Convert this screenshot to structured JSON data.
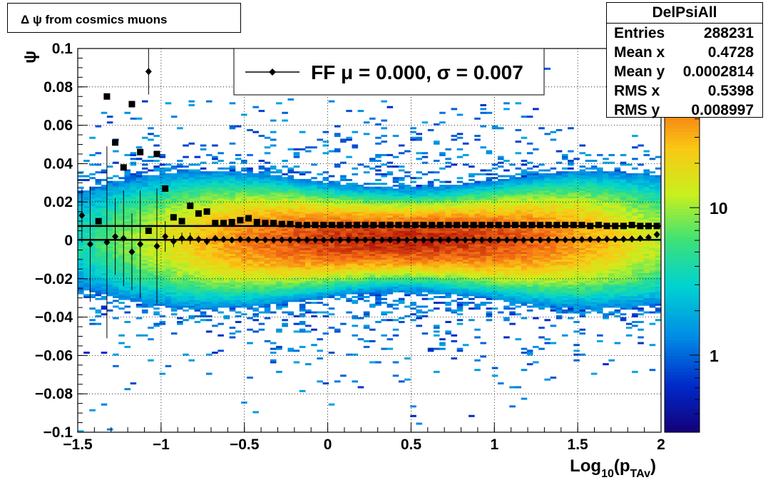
{
  "title": "Δ ψ from cosmics muons",
  "stats": {
    "name": "DelPsiAll",
    "rows": [
      {
        "label": "Entries",
        "value": "288231"
      },
      {
        "label": "Mean x",
        "value": "0.4728"
      },
      {
        "label": "Mean y",
        "value": "0.0002814"
      },
      {
        "label": "RMS x",
        "value": "0.5398"
      },
      {
        "label": "RMS y",
        "value": "0.008997"
      }
    ]
  },
  "legend": {
    "text": "FF μ =  0.000, σ =   0.007"
  },
  "colors": {
    "mean_markers": "#000000",
    "fit_line": "#000000",
    "frame": "#000000",
    "grid": "#000000"
  },
  "chart_data": {
    "type": "heatmap",
    "title": "Δ ψ from cosmics muons",
    "xlabel": "Log₁₀(p_TAv)",
    "ylabel": "ψ",
    "xlim": [
      -1.5,
      2
    ],
    "ylim": [
      -0.1,
      0.1
    ],
    "x_tick_labels": [
      "−1.5",
      "−1",
      "−0.5",
      "0",
      "0.5",
      "1",
      "1.5",
      "2"
    ],
    "y_tick_labels": [
      "−0.1",
      "−0.08",
      "−0.06",
      "−0.04",
      "−0.02",
      "0",
      "0.02",
      "0.04",
      "0.06",
      "0.08",
      "0.1"
    ],
    "colorbar": {
      "scale": "log",
      "tick_labels": [
        "1",
        "10"
      ],
      "range": [
        0.3,
        120
      ]
    },
    "grid": true,
    "legend_position": "top-center",
    "density_model": {
      "x_center": 0.45,
      "x_sigma": 0.75,
      "y_center": 0.0003,
      "y_sigma_min": 0.0085,
      "y_sigma_max": 0.016,
      "peak": 95
    },
    "series": [
      {
        "name": "FF",
        "marker": "diamond",
        "x": [
          -1.475,
          -1.425,
          -1.375,
          -1.325,
          -1.275,
          -1.225,
          -1.175,
          -1.125,
          -1.075,
          -1.025,
          -0.975,
          -0.925,
          -0.875,
          -0.825,
          -0.775,
          -0.725,
          -0.675,
          -0.625,
          -0.575,
          -0.525,
          -0.475,
          -0.425,
          -0.375,
          -0.325,
          -0.275,
          -0.225,
          -0.175,
          -0.125,
          -0.075,
          -0.025,
          0.025,
          0.075,
          0.125,
          0.175,
          0.225,
          0.275,
          0.325,
          0.375,
          0.425,
          0.475,
          0.525,
          0.575,
          0.625,
          0.675,
          0.725,
          0.775,
          0.825,
          0.875,
          0.925,
          0.975,
          1.025,
          1.075,
          1.125,
          1.175,
          1.225,
          1.275,
          1.325,
          1.375,
          1.425,
          1.475,
          1.525,
          1.575,
          1.625,
          1.675,
          1.725,
          1.775,
          1.825,
          1.875,
          1.925,
          1.975
        ],
        "y": [
          0.013,
          -0.002,
          null,
          -0.001,
          0.002,
          0.001,
          -0.006,
          -0.002,
          0.088,
          -0.003,
          0.002,
          -0.0005,
          0.001,
          0.001,
          0.0005,
          -0.0005,
          0.001,
          0.0005,
          0.0002,
          0.0005,
          0.0004,
          0.0003,
          0.0003,
          0.0002,
          0.0003,
          0.0002,
          0.0002,
          0.0002,
          0.0002,
          0.0002,
          0.0002,
          0.0002,
          0.0002,
          0.0002,
          0.0002,
          0.0002,
          0.0002,
          0.0002,
          0.0002,
          0.0002,
          0.0002,
          0.0002,
          0.0002,
          0.0002,
          0.0002,
          0.0002,
          0.0002,
          0.0002,
          0.0002,
          0.0002,
          0.0002,
          0.0002,
          0.0002,
          0.0002,
          0.0002,
          0.0002,
          0.0003,
          0.0003,
          0.0003,
          0.0003,
          0.0004,
          0.0005,
          0.0005,
          0.0006,
          0.0006,
          0.0006,
          0.0007,
          0.001,
          0.0015,
          0.003
        ],
        "yerr": [
          0.014,
          0.03,
          null,
          0.05,
          0.02,
          0.025,
          0.02,
          0.028,
          0.012,
          0.03,
          0.008,
          0.003,
          0.003,
          0.003,
          0.002,
          0.002,
          0.001,
          0.001,
          0.001,
          0.0005,
          0.0005,
          0.0005,
          0.0005,
          0.0005,
          0.0005,
          0.0005,
          0.0005,
          0.0005,
          0.0005,
          0.0005,
          0.0005,
          0.0005,
          0.0005,
          0.0005,
          0.0005,
          0.0005,
          0.0005,
          0.0005,
          0.0005,
          0.0005,
          0.0005,
          0.0005,
          0.0005,
          0.0005,
          0.0005,
          0.0005,
          0.0005,
          0.0005,
          0.0005,
          0.0005,
          0.0005,
          0.0005,
          0.0005,
          0.0005,
          0.0005,
          0.0005,
          0.0005,
          0.0005,
          0.0005,
          0.0005,
          0.0005,
          0.0005,
          0.0005,
          0.0005,
          0.0005,
          0.0005,
          0.0005,
          0.0005,
          0.0005,
          0.0005
        ]
      },
      {
        "marker": "square",
        "x": [
          -1.475,
          -1.425,
          -1.375,
          -1.325,
          -1.275,
          -1.225,
          -1.175,
          -1.125,
          -1.075,
          -1.025,
          -0.975,
          -0.925,
          -0.875,
          -0.825,
          -0.775,
          -0.725,
          -0.675,
          -0.625,
          -0.575,
          -0.525,
          -0.475,
          -0.425,
          -0.375,
          -0.325,
          -0.275,
          -0.225,
          -0.175,
          -0.125,
          -0.075,
          -0.025,
          0.025,
          0.075,
          0.125,
          0.175,
          0.225,
          0.275,
          0.325,
          0.375,
          0.425,
          0.475,
          0.525,
          0.575,
          0.625,
          0.675,
          0.725,
          0.775,
          0.825,
          0.875,
          0.925,
          0.975,
          1.025,
          1.075,
          1.125,
          1.175,
          1.225,
          1.275,
          1.325,
          1.375,
          1.425,
          1.475,
          1.525,
          1.575,
          1.625,
          1.675,
          1.725,
          1.775,
          1.825,
          1.875,
          1.925,
          1.975
        ],
        "y": [
          null,
          null,
          0.01,
          0.075,
          0.051,
          0.038,
          0.071,
          0.046,
          0.005,
          0.045,
          0.027,
          0.012,
          0.01,
          0.018,
          0.014,
          0.015,
          0.009,
          0.009,
          0.0095,
          0.0105,
          0.0115,
          0.0095,
          0.009,
          0.009,
          0.0085,
          0.0085,
          0.008,
          0.008,
          0.008,
          0.008,
          0.008,
          0.008,
          0.008,
          0.008,
          0.008,
          0.008,
          0.008,
          0.008,
          0.008,
          0.008,
          0.008,
          0.008,
          0.008,
          0.008,
          0.008,
          0.008,
          0.008,
          0.008,
          0.008,
          0.008,
          0.008,
          0.008,
          0.008,
          0.008,
          0.008,
          0.008,
          0.008,
          0.008,
          0.008,
          0.008,
          0.008,
          0.0075,
          0.008,
          0.0075,
          0.0075,
          0.0075,
          0.008,
          0.0075,
          0.0075,
          0.0075
        ]
      }
    ],
    "fit_lines": [
      {
        "x": [
          -1.5,
          2
        ],
        "y": [
          0.0003,
          0.0003
        ]
      },
      {
        "x": [
          -1.5,
          2
        ],
        "y": [
          0.0075,
          0.0075
        ]
      }
    ]
  }
}
